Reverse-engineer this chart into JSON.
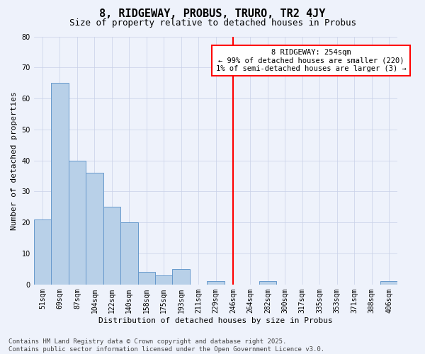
{
  "title": "8, RIDGEWAY, PROBUS, TRURO, TR2 4JY",
  "subtitle": "Size of property relative to detached houses in Probus",
  "xlabel": "Distribution of detached houses by size in Probus",
  "ylabel": "Number of detached properties",
  "categories": [
    "51sqm",
    "69sqm",
    "87sqm",
    "104sqm",
    "122sqm",
    "140sqm",
    "158sqm",
    "175sqm",
    "193sqm",
    "211sqm",
    "229sqm",
    "246sqm",
    "264sqm",
    "282sqm",
    "300sqm",
    "317sqm",
    "335sqm",
    "353sqm",
    "371sqm",
    "388sqm",
    "406sqm"
  ],
  "values": [
    21,
    65,
    40,
    36,
    25,
    20,
    4,
    3,
    5,
    0,
    1,
    0,
    0,
    1,
    0,
    0,
    0,
    0,
    0,
    0,
    1
  ],
  "bar_color": "#b8d0e8",
  "bar_edge_color": "#6699cc",
  "ylim": [
    0,
    80
  ],
  "yticks": [
    0,
    10,
    20,
    30,
    40,
    50,
    60,
    70,
    80
  ],
  "red_line_index": 11,
  "annotation_title": "8 RIDGEWAY: 254sqm",
  "annotation_line1": "← 99% of detached houses are smaller (220)",
  "annotation_line2": "1% of semi-detached houses are larger (3) →",
  "footer_line1": "Contains HM Land Registry data © Crown copyright and database right 2025.",
  "footer_line2": "Contains public sector information licensed under the Open Government Licence v3.0.",
  "background_color": "#eef2fb",
  "plot_background": "#eef2fb",
  "grid_color": "#c8d0e8",
  "title_fontsize": 11,
  "subtitle_fontsize": 9,
  "axis_label_fontsize": 8,
  "tick_fontsize": 7,
  "footer_fontsize": 6.5,
  "annot_fontsize": 7.5
}
